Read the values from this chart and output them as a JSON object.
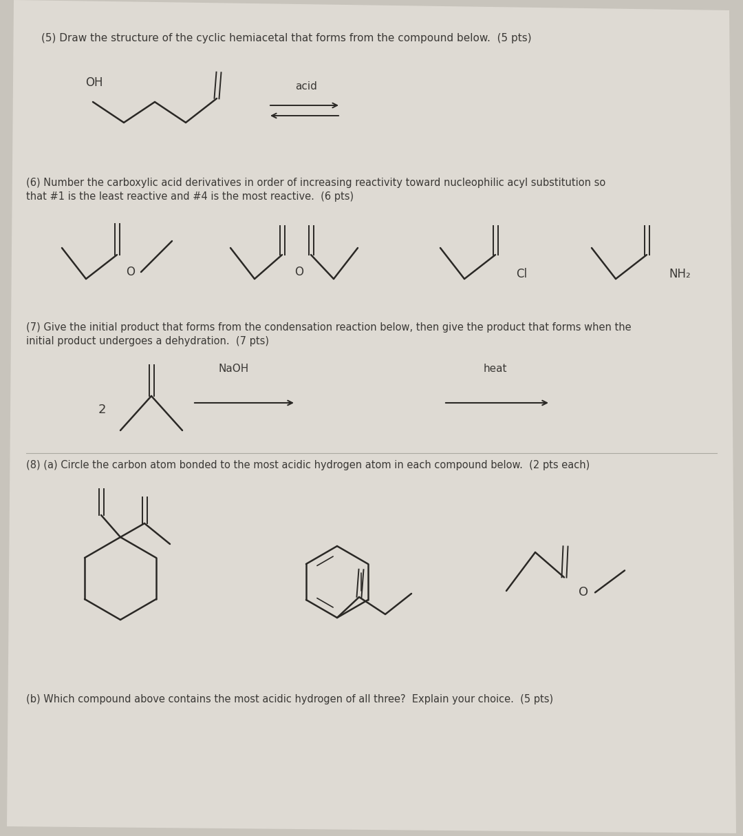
{
  "bg_color": "#c8c4bc",
  "page_color": "#dedad3",
  "text_color": "#3a3835",
  "line_color": "#2a2825",
  "lw": 1.8,
  "q5_line1": "(5) Draw the structure of the cyclic hemiacetal that forms from the compound below.  (5 pts)",
  "q6_line1": "(6) Number the carboxylic acid derivatives in order of increasing reactivity toward nucleophilic acyl substitution so",
  "q6_line2": "that #1 is the least reactive and #4 is the most reactive.  (6 pts)",
  "q7_line1": "(7) Give the initial product that forms from the condensation reaction below, then give the product that forms when the",
  "q7_line2": "initial product undergoes a dehydration.  (7 pts)",
  "q8a_line1": "(8) (a) Circle the carbon atom bonded to the most acidic hydrogen atom in each compound below.  (2 pts each)",
  "q8b_line1": "(b) Which compound above contains the most acidic hydrogen of all three?  Explain your choice.  (5 pts)"
}
